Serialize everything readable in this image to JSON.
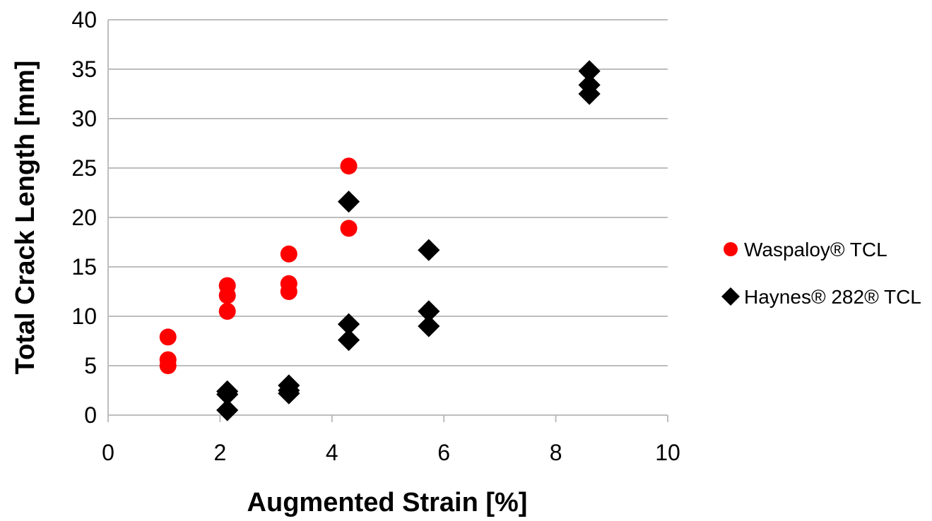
{
  "chart_data": {
    "type": "scatter",
    "title": "",
    "xlabel": "Augmented Strain [%]",
    "ylabel": "Total Crack Length [mm]",
    "xlim": [
      0,
      10
    ],
    "ylim": [
      0,
      40
    ],
    "xticks": [
      0,
      2,
      4,
      6,
      8,
      10
    ],
    "yticks": [
      0,
      5,
      10,
      15,
      20,
      25,
      30,
      35,
      40
    ],
    "grid": "horizontal",
    "legend_position": "right",
    "series": [
      {
        "name": "Waspaloy® TCL",
        "marker": "circle",
        "color": "#ff0000",
        "points": [
          {
            "x": 1.07,
            "y": 7.9
          },
          {
            "x": 1.07,
            "y": 5.6
          },
          {
            "x": 1.07,
            "y": 5.0
          },
          {
            "x": 2.13,
            "y": 13.1
          },
          {
            "x": 2.13,
            "y": 12.1
          },
          {
            "x": 2.13,
            "y": 10.5
          },
          {
            "x": 3.23,
            "y": 16.3
          },
          {
            "x": 3.23,
            "y": 13.3
          },
          {
            "x": 3.23,
            "y": 12.5
          },
          {
            "x": 4.3,
            "y": 25.2
          },
          {
            "x": 4.3,
            "y": 18.9
          }
        ]
      },
      {
        "name": "Haynes® 282® TCL",
        "marker": "diamond",
        "color": "#000000",
        "points": [
          {
            "x": 2.13,
            "y": 2.4
          },
          {
            "x": 2.13,
            "y": 2.1
          },
          {
            "x": 2.13,
            "y": 0.5
          },
          {
            "x": 3.23,
            "y": 3.0
          },
          {
            "x": 3.23,
            "y": 2.5
          },
          {
            "x": 3.23,
            "y": 2.2
          },
          {
            "x": 4.3,
            "y": 21.6
          },
          {
            "x": 4.3,
            "y": 9.2
          },
          {
            "x": 4.3,
            "y": 7.6
          },
          {
            "x": 5.73,
            "y": 16.7
          },
          {
            "x": 5.73,
            "y": 10.5
          },
          {
            "x": 5.73,
            "y": 9.0
          },
          {
            "x": 8.6,
            "y": 34.8
          },
          {
            "x": 8.6,
            "y": 33.4
          },
          {
            "x": 8.6,
            "y": 32.5
          }
        ]
      }
    ]
  }
}
